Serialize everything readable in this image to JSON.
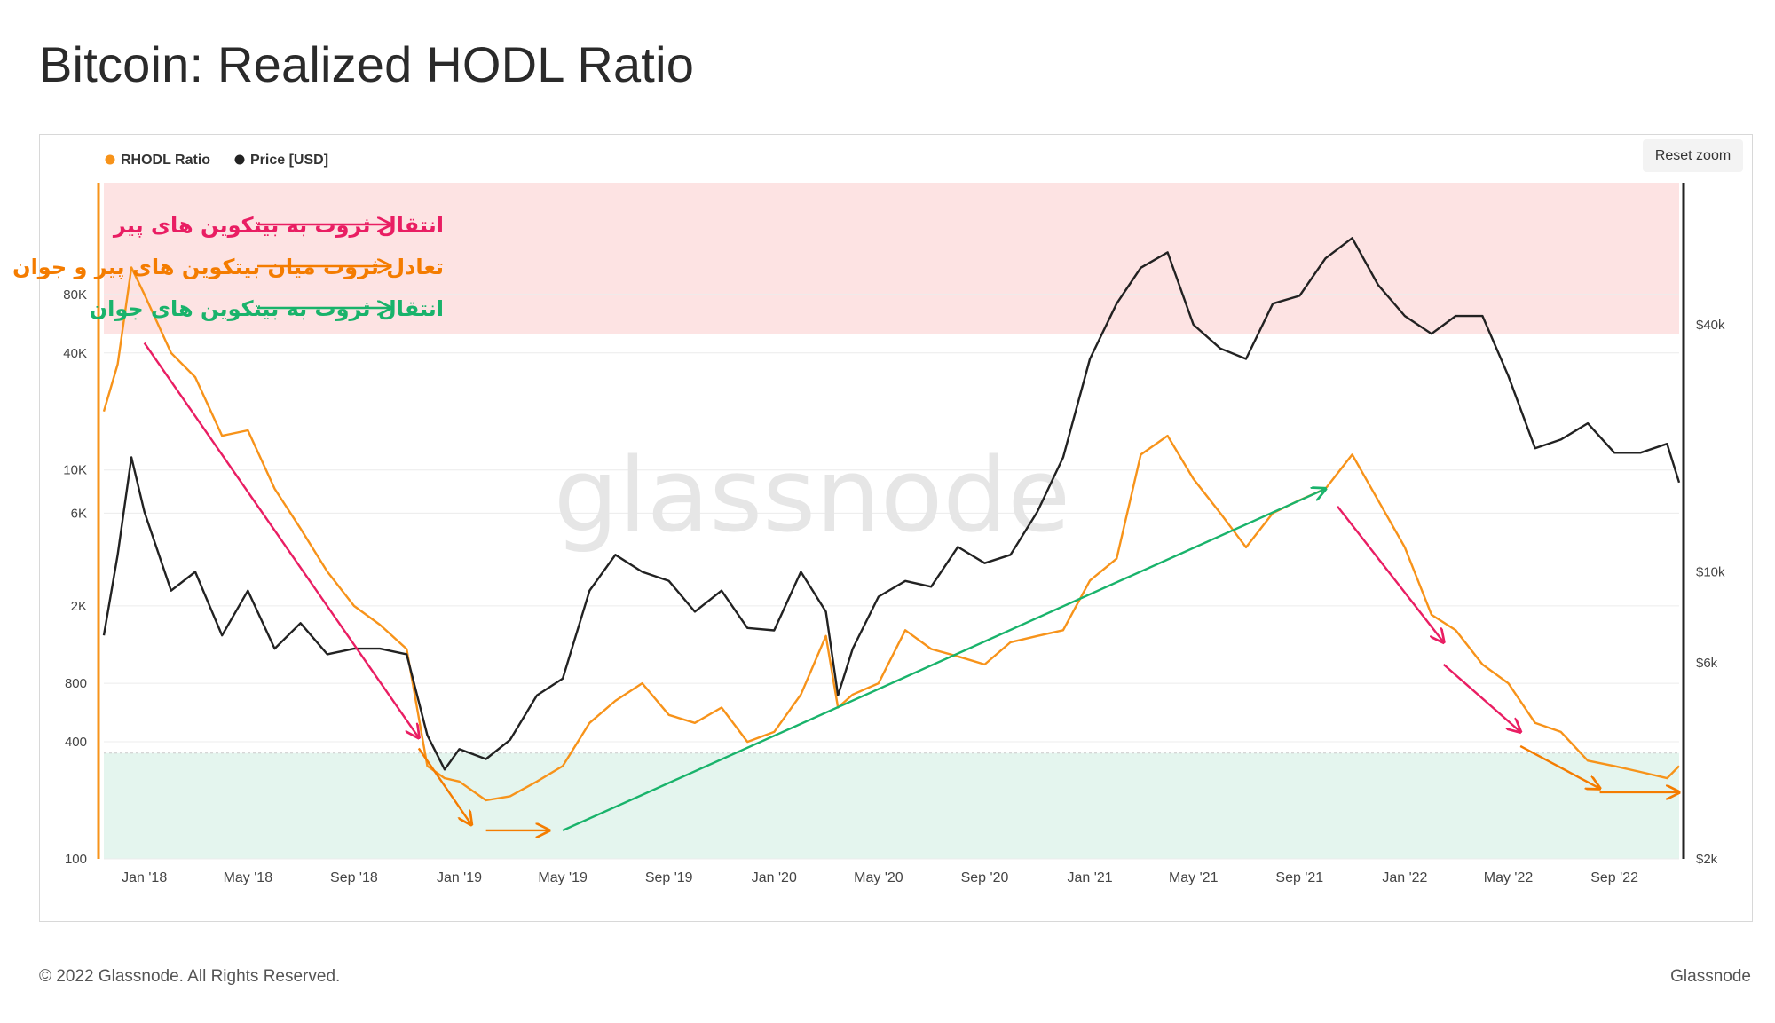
{
  "page": {
    "title": "Bitcoin: Realized HODL Ratio",
    "reset_zoom_label": "Reset zoom",
    "footer_copyright": "© 2022 Glassnode. All Rights Reserved.",
    "footer_brand": "Glassnode",
    "watermark": "glassnode"
  },
  "chart_data": {
    "type": "line",
    "legend": {
      "placement": "top-left",
      "items": [
        "RHODL Ratio",
        "Price [USD]"
      ]
    },
    "x_axis": {
      "type": "date",
      "range": [
        "2017-11-15",
        "2022-11-15"
      ],
      "ticks": [
        {
          "date": "2018-01-01",
          "label": "Jan '18"
        },
        {
          "date": "2018-05-01",
          "label": "May '18"
        },
        {
          "date": "2018-09-01",
          "label": "Sep '18"
        },
        {
          "date": "2019-01-01",
          "label": "Jan '19"
        },
        {
          "date": "2019-05-01",
          "label": "May '19"
        },
        {
          "date": "2019-09-01",
          "label": "Sep '19"
        },
        {
          "date": "2020-01-01",
          "label": "Jan '20"
        },
        {
          "date": "2020-05-01",
          "label": "May '20"
        },
        {
          "date": "2020-09-01",
          "label": "Sep '20"
        },
        {
          "date": "2021-01-01",
          "label": "Jan '21"
        },
        {
          "date": "2021-05-01",
          "label": "May '21"
        },
        {
          "date": "2021-09-01",
          "label": "Sep '21"
        },
        {
          "date": "2022-01-01",
          "label": "Jan '22"
        },
        {
          "date": "2022-05-01",
          "label": "May '22"
        },
        {
          "date": "2022-09-01",
          "label": "Sep '22"
        }
      ]
    },
    "y_axis_left": {
      "label": "",
      "scale": "log",
      "range": [
        100,
        300000
      ],
      "ticks": [
        {
          "value": 100,
          "label": "100"
        },
        {
          "value": 400,
          "label": "400"
        },
        {
          "value": 800,
          "label": "800"
        },
        {
          "value": 2000,
          "label": "2K"
        },
        {
          "value": 6000,
          "label": "6K"
        },
        {
          "value": 10000,
          "label": "10K"
        },
        {
          "value": 40000,
          "label": "40K"
        },
        {
          "value": 80000,
          "label": "80K"
        }
      ]
    },
    "y_axis_right": {
      "label": "",
      "scale": "log",
      "range": [
        2000,
        86000
      ],
      "ticks": [
        {
          "value": 2000,
          "label": "$2k"
        },
        {
          "value": 6000,
          "label": "$6k"
        },
        {
          "value": 10000,
          "label": "$10k"
        },
        {
          "value": 40000,
          "label": "$40k"
        }
      ]
    },
    "zones": [
      {
        "name": "red",
        "from": 50000,
        "to": 300000,
        "color": "#fde3e3"
      },
      {
        "name": "green",
        "from": 100,
        "to": 350,
        "color": "#e4f5ee"
      }
    ],
    "series": [
      {
        "name": "RHODL Ratio",
        "axis": "left",
        "color": "#f7931a",
        "points": [
          [
            "2017-11-15",
            20000
          ],
          [
            "2017-12-01",
            35000
          ],
          [
            "2017-12-17",
            110000
          ],
          [
            "2018-01-01",
            80000
          ],
          [
            "2018-02-01",
            40000
          ],
          [
            "2018-03-01",
            30000
          ],
          [
            "2018-04-01",
            15000
          ],
          [
            "2018-05-01",
            16000
          ],
          [
            "2018-06-01",
            8000
          ],
          [
            "2018-07-01",
            5000
          ],
          [
            "2018-08-01",
            3000
          ],
          [
            "2018-09-01",
            2000
          ],
          [
            "2018-10-01",
            1600
          ],
          [
            "2018-11-01",
            1200
          ],
          [
            "2018-11-25",
            300
          ],
          [
            "2018-12-15",
            260
          ],
          [
            "2019-01-01",
            250
          ],
          [
            "2019-02-01",
            200
          ],
          [
            "2019-03-01",
            210
          ],
          [
            "2019-04-01",
            250
          ],
          [
            "2019-05-01",
            300
          ],
          [
            "2019-06-01",
            500
          ],
          [
            "2019-07-01",
            650
          ],
          [
            "2019-08-01",
            800
          ],
          [
            "2019-09-01",
            550
          ],
          [
            "2019-10-01",
            500
          ],
          [
            "2019-11-01",
            600
          ],
          [
            "2019-12-01",
            400
          ],
          [
            "2020-01-01",
            450
          ],
          [
            "2020-02-01",
            700
          ],
          [
            "2020-03-01",
            1400
          ],
          [
            "2020-03-15",
            600
          ],
          [
            "2020-04-01",
            700
          ],
          [
            "2020-05-01",
            800
          ],
          [
            "2020-06-01",
            1500
          ],
          [
            "2020-07-01",
            1200
          ],
          [
            "2020-08-01",
            1100
          ],
          [
            "2020-09-01",
            1000
          ],
          [
            "2020-10-01",
            1300
          ],
          [
            "2020-11-01",
            1400
          ],
          [
            "2020-12-01",
            1500
          ],
          [
            "2021-01-01",
            2700
          ],
          [
            "2021-02-01",
            3500
          ],
          [
            "2021-03-01",
            12000
          ],
          [
            "2021-04-01",
            15000
          ],
          [
            "2021-05-01",
            9000
          ],
          [
            "2021-06-01",
            6000
          ],
          [
            "2021-07-01",
            4000
          ],
          [
            "2021-08-01",
            6000
          ],
          [
            "2021-09-01",
            7000
          ],
          [
            "2021-10-01",
            8000
          ],
          [
            "2021-11-01",
            12000
          ],
          [
            "2021-12-01",
            7000
          ],
          [
            "2022-01-01",
            4000
          ],
          [
            "2022-02-01",
            1800
          ],
          [
            "2022-03-01",
            1500
          ],
          [
            "2022-04-01",
            1000
          ],
          [
            "2022-05-01",
            800
          ],
          [
            "2022-06-01",
            500
          ],
          [
            "2022-07-01",
            450
          ],
          [
            "2022-08-01",
            320
          ],
          [
            "2022-09-01",
            300
          ],
          [
            "2022-10-01",
            280
          ],
          [
            "2022-11-01",
            260
          ],
          [
            "2022-11-15",
            300
          ]
        ]
      },
      {
        "name": "Price [USD]",
        "axis": "right",
        "color": "#222222",
        "points": [
          [
            "2017-11-15",
            7000
          ],
          [
            "2017-12-01",
            11000
          ],
          [
            "2017-12-17",
            19000
          ],
          [
            "2018-01-01",
            14000
          ],
          [
            "2018-02-01",
            9000
          ],
          [
            "2018-03-01",
            10000
          ],
          [
            "2018-04-01",
            7000
          ],
          [
            "2018-05-01",
            9000
          ],
          [
            "2018-06-01",
            6500
          ],
          [
            "2018-07-01",
            7500
          ],
          [
            "2018-08-01",
            6300
          ],
          [
            "2018-09-01",
            6500
          ],
          [
            "2018-10-01",
            6500
          ],
          [
            "2018-11-01",
            6300
          ],
          [
            "2018-11-25",
            4000
          ],
          [
            "2018-12-15",
            3300
          ],
          [
            "2019-01-01",
            3700
          ],
          [
            "2019-02-01",
            3500
          ],
          [
            "2019-03-01",
            3900
          ],
          [
            "2019-04-01",
            5000
          ],
          [
            "2019-05-01",
            5500
          ],
          [
            "2019-06-01",
            9000
          ],
          [
            "2019-07-01",
            11000
          ],
          [
            "2019-08-01",
            10000
          ],
          [
            "2019-09-01",
            9500
          ],
          [
            "2019-10-01",
            8000
          ],
          [
            "2019-11-01",
            9000
          ],
          [
            "2019-12-01",
            7300
          ],
          [
            "2020-01-01",
            7200
          ],
          [
            "2020-02-01",
            10000
          ],
          [
            "2020-03-01",
            8000
          ],
          [
            "2020-03-15",
            5000
          ],
          [
            "2020-04-01",
            6500
          ],
          [
            "2020-05-01",
            8700
          ],
          [
            "2020-06-01",
            9500
          ],
          [
            "2020-07-01",
            9200
          ],
          [
            "2020-08-01",
            11500
          ],
          [
            "2020-09-01",
            10500
          ],
          [
            "2020-10-01",
            11000
          ],
          [
            "2020-11-01",
            14000
          ],
          [
            "2020-12-01",
            19000
          ],
          [
            "2021-01-01",
            33000
          ],
          [
            "2021-02-01",
            45000
          ],
          [
            "2021-03-01",
            55000
          ],
          [
            "2021-04-01",
            60000
          ],
          [
            "2021-05-01",
            40000
          ],
          [
            "2021-06-01",
            35000
          ],
          [
            "2021-07-01",
            33000
          ],
          [
            "2021-08-01",
            45000
          ],
          [
            "2021-09-01",
            47000
          ],
          [
            "2021-10-01",
            58000
          ],
          [
            "2021-11-01",
            65000
          ],
          [
            "2021-12-01",
            50000
          ],
          [
            "2022-01-01",
            42000
          ],
          [
            "2022-02-01",
            38000
          ],
          [
            "2022-03-01",
            42000
          ],
          [
            "2022-04-01",
            42000
          ],
          [
            "2022-05-01",
            30000
          ],
          [
            "2022-06-01",
            20000
          ],
          [
            "2022-07-01",
            21000
          ],
          [
            "2022-08-01",
            23000
          ],
          [
            "2022-09-01",
            19500
          ],
          [
            "2022-10-01",
            19500
          ],
          [
            "2022-11-01",
            20500
          ],
          [
            "2022-11-15",
            16500
          ]
        ]
      }
    ],
    "annotations": {
      "legend_arrows": [
        {
          "color": "#e91e63",
          "text": "انتقال ثروت به بیتکوین های پیر"
        },
        {
          "color": "#f47c00",
          "text": "تعادل ثروت میان بیتکوین های پیر و جوان"
        },
        {
          "color": "#19b36b",
          "text": "انتقال ثروت به بیتکوین های جوان"
        }
      ],
      "trend_arrows": [
        {
          "color": "#e91e63",
          "from": [
            "2018-01-01",
            45000
          ],
          "to": [
            "2018-11-15",
            420
          ]
        },
        {
          "color": "#f47c00",
          "from": [
            "2018-11-15",
            370
          ],
          "to": [
            "2019-01-15",
            150
          ]
        },
        {
          "color": "#f47c00",
          "from": [
            "2019-02-01",
            140
          ],
          "to": [
            "2019-04-15",
            140
          ]
        },
        {
          "color": "#19b36b",
          "from": [
            "2019-05-01",
            140
          ],
          "to": [
            "2021-10-01",
            8000
          ]
        },
        {
          "color": "#e91e63",
          "from": [
            "2021-10-15",
            6500
          ],
          "to": [
            "2022-02-15",
            1300
          ]
        },
        {
          "color": "#e91e63",
          "from": [
            "2022-02-15",
            1000
          ],
          "to": [
            "2022-05-15",
            450
          ]
        },
        {
          "color": "#f47c00",
          "from": [
            "2022-05-15",
            380
          ],
          "to": [
            "2022-08-15",
            230
          ]
        },
        {
          "color": "#f47c00",
          "from": [
            "2022-08-15",
            220
          ],
          "to": [
            "2022-11-15",
            220
          ]
        }
      ]
    }
  }
}
